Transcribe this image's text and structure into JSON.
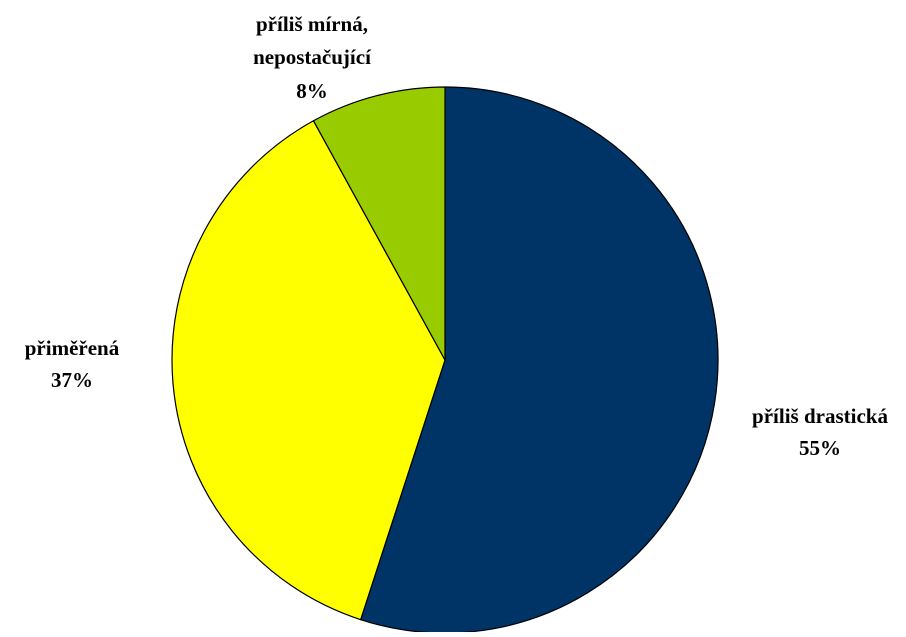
{
  "chart_data": {
    "type": "pie",
    "title": "",
    "start_angle_deg": 0,
    "direction": "clockwise",
    "slices": [
      {
        "label": "příliš drastická",
        "value": 55,
        "value_label": "55%",
        "color": "#003366"
      },
      {
        "label": "přiměřená",
        "value": 37,
        "value_label": "37%",
        "color": "#FFFF00"
      },
      {
        "label": "příliš mírná, nepostačující",
        "label_lines": [
          "příliš mírná,",
          "nepostačující"
        ],
        "value": 8,
        "value_label": "8%",
        "color": "#99CC00"
      }
    ],
    "slice_border_color": "#000000",
    "legend": "none",
    "data_labels": "outside"
  }
}
